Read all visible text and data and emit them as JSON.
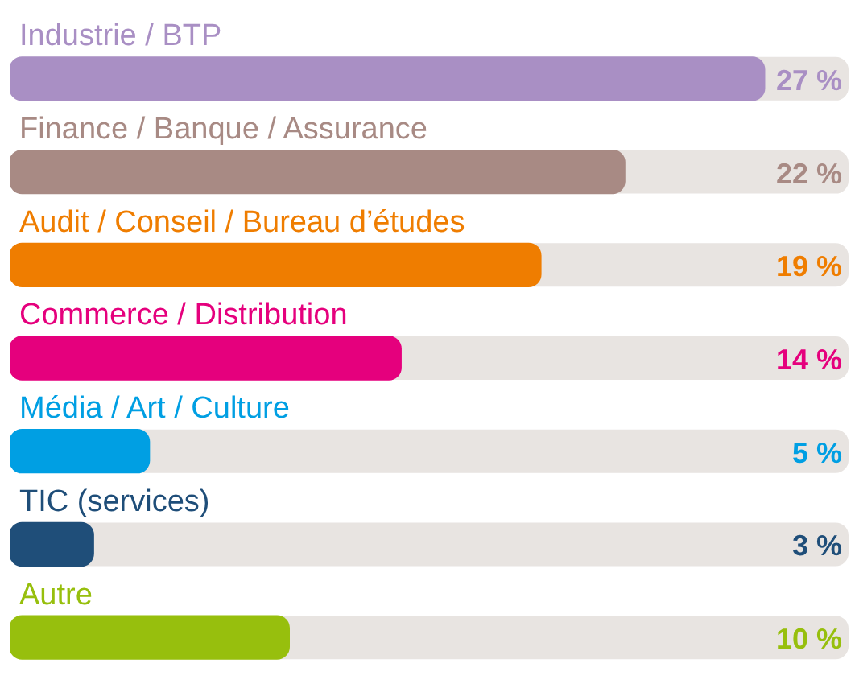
{
  "chart_data": {
    "type": "bar",
    "orientation": "horizontal",
    "categories": [
      "Industrie / BTP",
      "Finance / Banque / Assurance",
      "Audit / Conseil / Bureau d’études",
      "Commerce / Distribution",
      "Média / Art / Culture",
      "TIC (services)",
      "Autre"
    ],
    "values": [
      27,
      22,
      19,
      14,
      5,
      3,
      10
    ],
    "colors": [
      "#a98fc4",
      "#a88a84",
      "#ef7d00",
      "#e5007d",
      "#009fe3",
      "#1f4e79",
      "#97bf0d"
    ],
    "value_labels": [
      "27 %",
      "22 %",
      "19 %",
      "14 %",
      "5 %",
      "3 %",
      "10 %"
    ],
    "legend": false
  }
}
